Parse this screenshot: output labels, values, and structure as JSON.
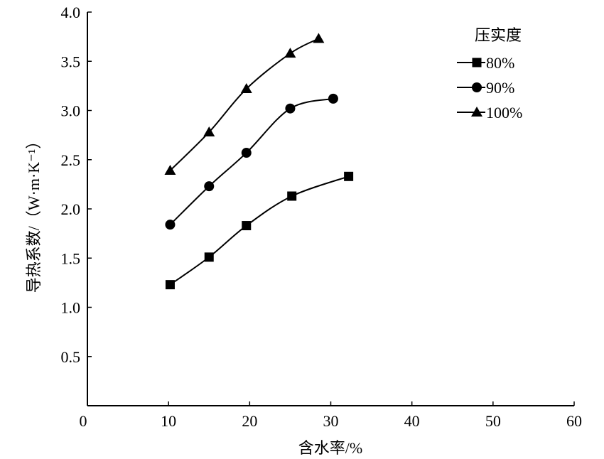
{
  "chart_data": {
    "type": "line",
    "title": "",
    "xlabel": "含水率/%",
    "ylabel": "导热系数/（W·m·K⁻¹）",
    "xlim": [
      0,
      60
    ],
    "ylim": [
      0,
      4.0
    ],
    "xticks": [
      0,
      10,
      20,
      30,
      40,
      50,
      60
    ],
    "yticks": [
      0.5,
      1.0,
      1.5,
      2.0,
      2.5,
      3.0,
      3.5,
      4.0
    ],
    "xtick_labels": [
      "0",
      "10",
      "20",
      "30",
      "40",
      "50",
      "60"
    ],
    "ytick_labels": [
      "0.5",
      "1.0",
      "1.5",
      "2.0",
      "2.5",
      "3.0",
      "3.5",
      "4.0"
    ],
    "grid": false,
    "legend": {
      "title": "压实度",
      "placement": "top-right"
    },
    "series": [
      {
        "name": "80%",
        "marker": "square",
        "x": [
          10.2,
          15.0,
          19.6,
          25.2,
          32.2
        ],
        "y": [
          1.23,
          1.51,
          1.83,
          2.13,
          2.33
        ]
      },
      {
        "name": "90%",
        "marker": "circle",
        "x": [
          10.2,
          15.0,
          19.6,
          25.0,
          30.3
        ],
        "y": [
          1.84,
          2.23,
          2.57,
          3.02,
          3.12
        ]
      },
      {
        "name": "100%",
        "marker": "triangle",
        "x": [
          10.2,
          15.0,
          19.6,
          25.0,
          28.5
        ],
        "y": [
          2.39,
          2.78,
          3.22,
          3.58,
          3.73
        ]
      }
    ]
  }
}
